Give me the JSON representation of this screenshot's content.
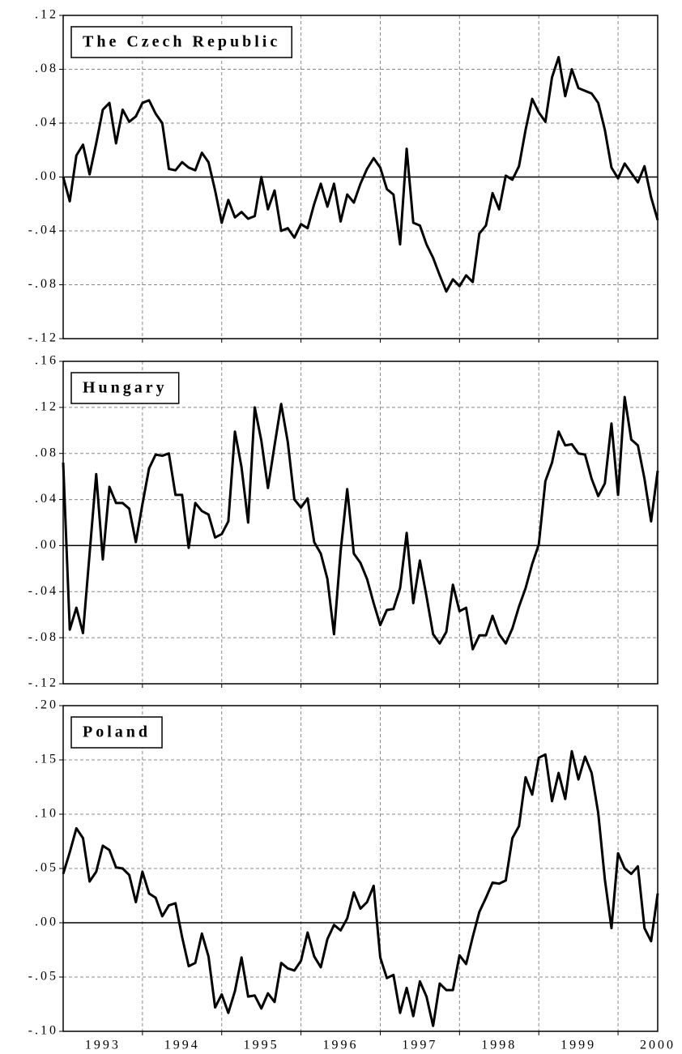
{
  "chart_data": [
    {
      "type": "line",
      "title": "The Czech Republic",
      "color": "#000000",
      "grid": true,
      "ylim": [
        -0.12,
        0.12
      ],
      "yticks": [
        {
          "value": -0.12,
          "label": "-.12"
        },
        {
          "value": -0.08,
          "label": "-.08"
        },
        {
          "value": -0.04,
          "label": "-.04"
        },
        {
          "value": 0,
          "label": ".00"
        },
        {
          "value": 0.04,
          "label": ".04"
        },
        {
          "value": 0.08,
          "label": ".08"
        },
        {
          "value": 0.12,
          "label": ".12"
        }
      ],
      "values": [
        0.0,
        -0.018,
        0.016,
        0.024,
        0.002,
        0.025,
        0.05,
        0.055,
        0.025,
        0.05,
        0.041,
        0.045,
        0.055,
        0.057,
        0.047,
        0.04,
        0.006,
        0.005,
        0.011,
        0.007,
        0.005,
        0.018,
        0.011,
        -0.01,
        -0.034,
        -0.017,
        -0.03,
        -0.026,
        -0.031,
        -0.029,
        0.0,
        -0.024,
        -0.01,
        -0.04,
        -0.038,
        -0.045,
        -0.035,
        -0.038,
        -0.02,
        -0.005,
        -0.022,
        -0.005,
        -0.033,
        -0.013,
        -0.019,
        -0.005,
        0.006,
        0.014,
        0.007,
        -0.009,
        -0.013,
        -0.05,
        0.021,
        -0.034,
        -0.036,
        -0.05,
        -0.06,
        -0.073,
        -0.085,
        -0.076,
        -0.081,
        -0.073,
        -0.078,
        -0.042,
        -0.036,
        -0.012,
        -0.024,
        0.001,
        -0.002,
        0.008,
        0.035,
        0.058,
        0.048,
        0.041,
        0.074,
        0.089,
        0.06,
        0.08,
        0.066,
        0.064,
        0.062,
        0.055,
        0.035,
        0.007,
        -0.001,
        0.01,
        0.003,
        -0.004,
        0.008,
        -0.015,
        -0.032
      ]
    },
    {
      "type": "line",
      "title": "Hungary",
      "color": "#000000",
      "grid": true,
      "ylim": [
        -0.12,
        0.16
      ],
      "yticks": [
        {
          "value": -0.12,
          "label": "-.12"
        },
        {
          "value": -0.08,
          "label": "-.08"
        },
        {
          "value": -0.04,
          "label": "-.04"
        },
        {
          "value": 0,
          "label": ".00"
        },
        {
          "value": 0.04,
          "label": ".04"
        },
        {
          "value": 0.08,
          "label": ".08"
        },
        {
          "value": 0.12,
          "label": ".12"
        },
        {
          "value": 0.16,
          "label": ".16"
        }
      ],
      "values": [
        0.072,
        -0.073,
        -0.054,
        -0.076,
        -0.007,
        0.062,
        -0.012,
        0.051,
        0.037,
        0.037,
        0.032,
        0.003,
        0.036,
        0.067,
        0.079,
        0.078,
        0.08,
        0.044,
        0.044,
        -0.002,
        0.037,
        0.03,
        0.027,
        0.007,
        0.01,
        0.021,
        0.099,
        0.068,
        0.02,
        0.12,
        0.091,
        0.05,
        0.087,
        0.123,
        0.09,
        0.04,
        0.033,
        0.041,
        0.003,
        -0.007,
        -0.029,
        -0.077,
        -0.005,
        0.049,
        -0.007,
        -0.015,
        -0.029,
        -0.05,
        -0.069,
        -0.056,
        -0.055,
        -0.037,
        0.011,
        -0.05,
        -0.013,
        -0.044,
        -0.077,
        -0.085,
        -0.075,
        -0.034,
        -0.057,
        -0.054,
        -0.09,
        -0.078,
        -0.078,
        -0.061,
        -0.077,
        -0.085,
        -0.072,
        -0.053,
        -0.037,
        -0.016,
        0.001,
        0.056,
        0.072,
        0.099,
        0.087,
        0.088,
        0.08,
        0.079,
        0.058,
        0.043,
        0.054,
        0.106,
        0.044,
        0.129,
        0.092,
        0.087,
        0.058,
        0.021,
        0.065
      ]
    },
    {
      "type": "line",
      "title": "Poland",
      "color": "#000000",
      "grid": true,
      "ylim": [
        -0.1,
        0.2
      ],
      "yticks": [
        {
          "value": -0.1,
          "label": "-.10"
        },
        {
          "value": -0.05,
          "label": "-.05"
        },
        {
          "value": 0,
          "label": ".00"
        },
        {
          "value": 0.05,
          "label": ".05"
        },
        {
          "value": 0.1,
          "label": ".10"
        },
        {
          "value": 0.15,
          "label": ".15"
        },
        {
          "value": 0.2,
          "label": ".20"
        }
      ],
      "categories": [
        null,
        null,
        null,
        null,
        null,
        null,
        "1993",
        null,
        null,
        null,
        null,
        null,
        null,
        null,
        null,
        null,
        null,
        null,
        "1994",
        null,
        null,
        null,
        null,
        null,
        null,
        null,
        null,
        null,
        null,
        null,
        "1995",
        null,
        null,
        null,
        null,
        null,
        null,
        null,
        null,
        null,
        null,
        null,
        "1996",
        null,
        null,
        null,
        null,
        null,
        null,
        null,
        null,
        null,
        null,
        null,
        "1997",
        null,
        null,
        null,
        null,
        null,
        null,
        null,
        null,
        null,
        null,
        null,
        "1998",
        null,
        null,
        null,
        null,
        null,
        null,
        null,
        null,
        null,
        null,
        null,
        "1999",
        null,
        null,
        null,
        null,
        null,
        null,
        null,
        null,
        null,
        null,
        null,
        "2000"
      ],
      "values": [
        0.045,
        0.065,
        0.087,
        0.078,
        0.038,
        0.047,
        0.071,
        0.067,
        0.051,
        0.05,
        0.044,
        0.019,
        0.047,
        0.027,
        0.023,
        0.006,
        0.016,
        0.018,
        -0.013,
        -0.04,
        -0.037,
        -0.01,
        -0.031,
        -0.078,
        -0.066,
        -0.083,
        -0.063,
        -0.032,
        -0.068,
        -0.067,
        -0.079,
        -0.065,
        -0.073,
        -0.037,
        -0.042,
        -0.044,
        -0.035,
        -0.009,
        -0.031,
        -0.041,
        -0.015,
        -0.002,
        -0.007,
        0.004,
        0.028,
        0.013,
        0.019,
        0.034,
        -0.032,
        -0.051,
        -0.048,
        -0.083,
        -0.06,
        -0.086,
        -0.054,
        -0.068,
        -0.095,
        -0.056,
        -0.062,
        -0.062,
        -0.03,
        -0.038,
        -0.013,
        0.01,
        0.023,
        0.037,
        0.036,
        0.039,
        0.078,
        0.089,
        0.134,
        0.118,
        0.152,
        0.155,
        0.112,
        0.138,
        0.114,
        0.158,
        0.132,
        0.153,
        0.138,
        0.101,
        0.04,
        -0.005,
        0.064,
        0.05,
        0.045,
        0.052,
        -0.005,
        -0.017,
        0.027
      ]
    }
  ]
}
